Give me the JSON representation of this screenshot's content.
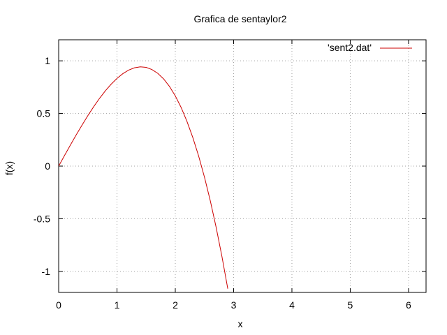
{
  "chart_data": {
    "type": "line",
    "title": "Grafica de sentaylor2",
    "xlabel": "x",
    "ylabel": "f(x)",
    "xlim": [
      0,
      6.3
    ],
    "ylim": [
      -1.2,
      1.2
    ],
    "x_ticks": [
      0,
      1,
      2,
      3,
      4,
      5,
      6
    ],
    "y_ticks": [
      -1,
      -0.5,
      0,
      0.5,
      1
    ],
    "x_tick_labels": [
      "0",
      "1",
      "2",
      "3",
      "4",
      "5",
      "6"
    ],
    "y_tick_labels": [
      "-1",
      "-0.5",
      "0",
      "0.5",
      "1"
    ],
    "grid": true,
    "legend_position": "top-right",
    "series": [
      {
        "name": "'sent2.dat'",
        "color": "#cc0000",
        "x": [
          0,
          0.1,
          0.2,
          0.3,
          0.4,
          0.5,
          0.6,
          0.7,
          0.8,
          0.9,
          1.0,
          1.1,
          1.2,
          1.3,
          1.4,
          1.5,
          1.6,
          1.7,
          1.8,
          1.9,
          2.0,
          2.1,
          2.2,
          2.3,
          2.4,
          2.5,
          2.6,
          2.7,
          2.8,
          2.9
        ],
        "y": [
          0,
          0.1,
          0.199,
          0.296,
          0.389,
          0.479,
          0.564,
          0.643,
          0.715,
          0.778,
          0.833,
          0.878,
          0.912,
          0.934,
          0.943,
          0.938,
          0.917,
          0.881,
          0.828,
          0.757,
          0.667,
          0.557,
          0.425,
          0.272,
          0.096,
          -0.104,
          -0.329,
          -0.581,
          -0.859,
          -1.165
        ]
      }
    ]
  }
}
